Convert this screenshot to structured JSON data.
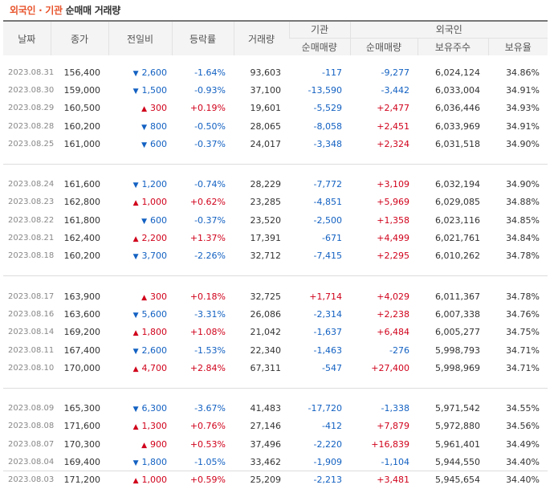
{
  "title": {
    "part1": "외국인",
    "sep": " · ",
    "part2": "기관",
    "part3": " 순매매 거래량"
  },
  "headers": {
    "date": "날짜",
    "close": "종가",
    "change": "전일비",
    "rate": "등락률",
    "volume": "거래량",
    "inst_group": "기관",
    "inst_net": "순매매량",
    "foreign_group": "외국인",
    "foreign_net": "순매매량",
    "holdings": "보유주수",
    "ratio": "보유율"
  },
  "colors": {
    "up": "#d0021b",
    "down": "#1361c2",
    "accent": "#e8542c"
  },
  "rows": [
    {
      "date": "2023.08.31",
      "close": "156,400",
      "dir": "down",
      "chg": "2,600",
      "rate": "-1.64%",
      "vol": "93,603",
      "inst": "-117",
      "frgn": "-9,277",
      "hold": "6,024,124",
      "ratio": "34.86%"
    },
    {
      "date": "2023.08.30",
      "close": "159,000",
      "dir": "down",
      "chg": "1,500",
      "rate": "-0.93%",
      "vol": "37,100",
      "inst": "-13,590",
      "frgn": "-3,442",
      "hold": "6,033,004",
      "ratio": "34.91%"
    },
    {
      "date": "2023.08.29",
      "close": "160,500",
      "dir": "up",
      "chg": "300",
      "rate": "+0.19%",
      "vol": "19,601",
      "inst": "-5,529",
      "frgn": "+2,477",
      "hold": "6,036,446",
      "ratio": "34.93%"
    },
    {
      "date": "2023.08.28",
      "close": "160,200",
      "dir": "down",
      "chg": "800",
      "rate": "-0.50%",
      "vol": "28,065",
      "inst": "-8,058",
      "frgn": "+2,451",
      "hold": "6,033,969",
      "ratio": "34.91%"
    },
    {
      "date": "2023.08.25",
      "close": "161,000",
      "dir": "down",
      "chg": "600",
      "rate": "-0.37%",
      "vol": "24,017",
      "inst": "-3,348",
      "frgn": "+2,324",
      "hold": "6,031,518",
      "ratio": "34.90%"
    },
    {
      "date": "2023.08.24",
      "close": "161,600",
      "dir": "down",
      "chg": "1,200",
      "rate": "-0.74%",
      "vol": "28,229",
      "inst": "-7,772",
      "frgn": "+3,109",
      "hold": "6,032,194",
      "ratio": "34.90%"
    },
    {
      "date": "2023.08.23",
      "close": "162,800",
      "dir": "up",
      "chg": "1,000",
      "rate": "+0.62%",
      "vol": "23,285",
      "inst": "-4,851",
      "frgn": "+5,969",
      "hold": "6,029,085",
      "ratio": "34.88%"
    },
    {
      "date": "2023.08.22",
      "close": "161,800",
      "dir": "down",
      "chg": "600",
      "rate": "-0.37%",
      "vol": "23,520",
      "inst": "-2,500",
      "frgn": "+1,358",
      "hold": "6,023,116",
      "ratio": "34.85%"
    },
    {
      "date": "2023.08.21",
      "close": "162,400",
      "dir": "up",
      "chg": "2,200",
      "rate": "+1.37%",
      "vol": "17,391",
      "inst": "-671",
      "frgn": "+4,499",
      "hold": "6,021,761",
      "ratio": "34.84%"
    },
    {
      "date": "2023.08.18",
      "close": "160,200",
      "dir": "down",
      "chg": "3,700",
      "rate": "-2.26%",
      "vol": "32,712",
      "inst": "-7,415",
      "frgn": "+2,295",
      "hold": "6,010,262",
      "ratio": "34.78%"
    },
    {
      "date": "2023.08.17",
      "close": "163,900",
      "dir": "up",
      "chg": "300",
      "rate": "+0.18%",
      "vol": "32,725",
      "inst": "+1,714",
      "frgn": "+4,029",
      "hold": "6,011,367",
      "ratio": "34.78%"
    },
    {
      "date": "2023.08.16",
      "close": "163,600",
      "dir": "down",
      "chg": "5,600",
      "rate": "-3.31%",
      "vol": "26,086",
      "inst": "-2,314",
      "frgn": "+2,238",
      "hold": "6,007,338",
      "ratio": "34.76%"
    },
    {
      "date": "2023.08.14",
      "close": "169,200",
      "dir": "up",
      "chg": "1,800",
      "rate": "+1.08%",
      "vol": "21,042",
      "inst": "-1,637",
      "frgn": "+6,484",
      "hold": "6,005,277",
      "ratio": "34.75%"
    },
    {
      "date": "2023.08.11",
      "close": "167,400",
      "dir": "down",
      "chg": "2,600",
      "rate": "-1.53%",
      "vol": "22,340",
      "inst": "-1,463",
      "frgn": "-276",
      "hold": "5,998,793",
      "ratio": "34.71%"
    },
    {
      "date": "2023.08.10",
      "close": "170,000",
      "dir": "up",
      "chg": "4,700",
      "rate": "+2.84%",
      "vol": "67,311",
      "inst": "-547",
      "frgn": "+27,400",
      "hold": "5,998,969",
      "ratio": "34.71%"
    },
    {
      "date": "2023.08.09",
      "close": "165,300",
      "dir": "down",
      "chg": "6,300",
      "rate": "-3.67%",
      "vol": "41,483",
      "inst": "-17,720",
      "frgn": "-1,338",
      "hold": "5,971,542",
      "ratio": "34.55%"
    },
    {
      "date": "2023.08.08",
      "close": "171,600",
      "dir": "up",
      "chg": "1,300",
      "rate": "+0.76%",
      "vol": "27,146",
      "inst": "-412",
      "frgn": "+7,879",
      "hold": "5,972,880",
      "ratio": "34.56%"
    },
    {
      "date": "2023.08.07",
      "close": "170,300",
      "dir": "up",
      "chg": "900",
      "rate": "+0.53%",
      "vol": "37,496",
      "inst": "-2,220",
      "frgn": "+16,839",
      "hold": "5,961,401",
      "ratio": "34.49%"
    },
    {
      "date": "2023.08.04",
      "close": "169,400",
      "dir": "down",
      "chg": "1,800",
      "rate": "-1.05%",
      "vol": "33,462",
      "inst": "-1,909",
      "frgn": "-1,104",
      "hold": "5,944,550",
      "ratio": "34.40%"
    },
    {
      "date": "2023.08.03",
      "close": "171,200",
      "dir": "up",
      "chg": "1,000",
      "rate": "+0.59%",
      "vol": "25,209",
      "inst": "-2,213",
      "frgn": "+3,481",
      "hold": "5,945,654",
      "ratio": "34.40%"
    }
  ]
}
